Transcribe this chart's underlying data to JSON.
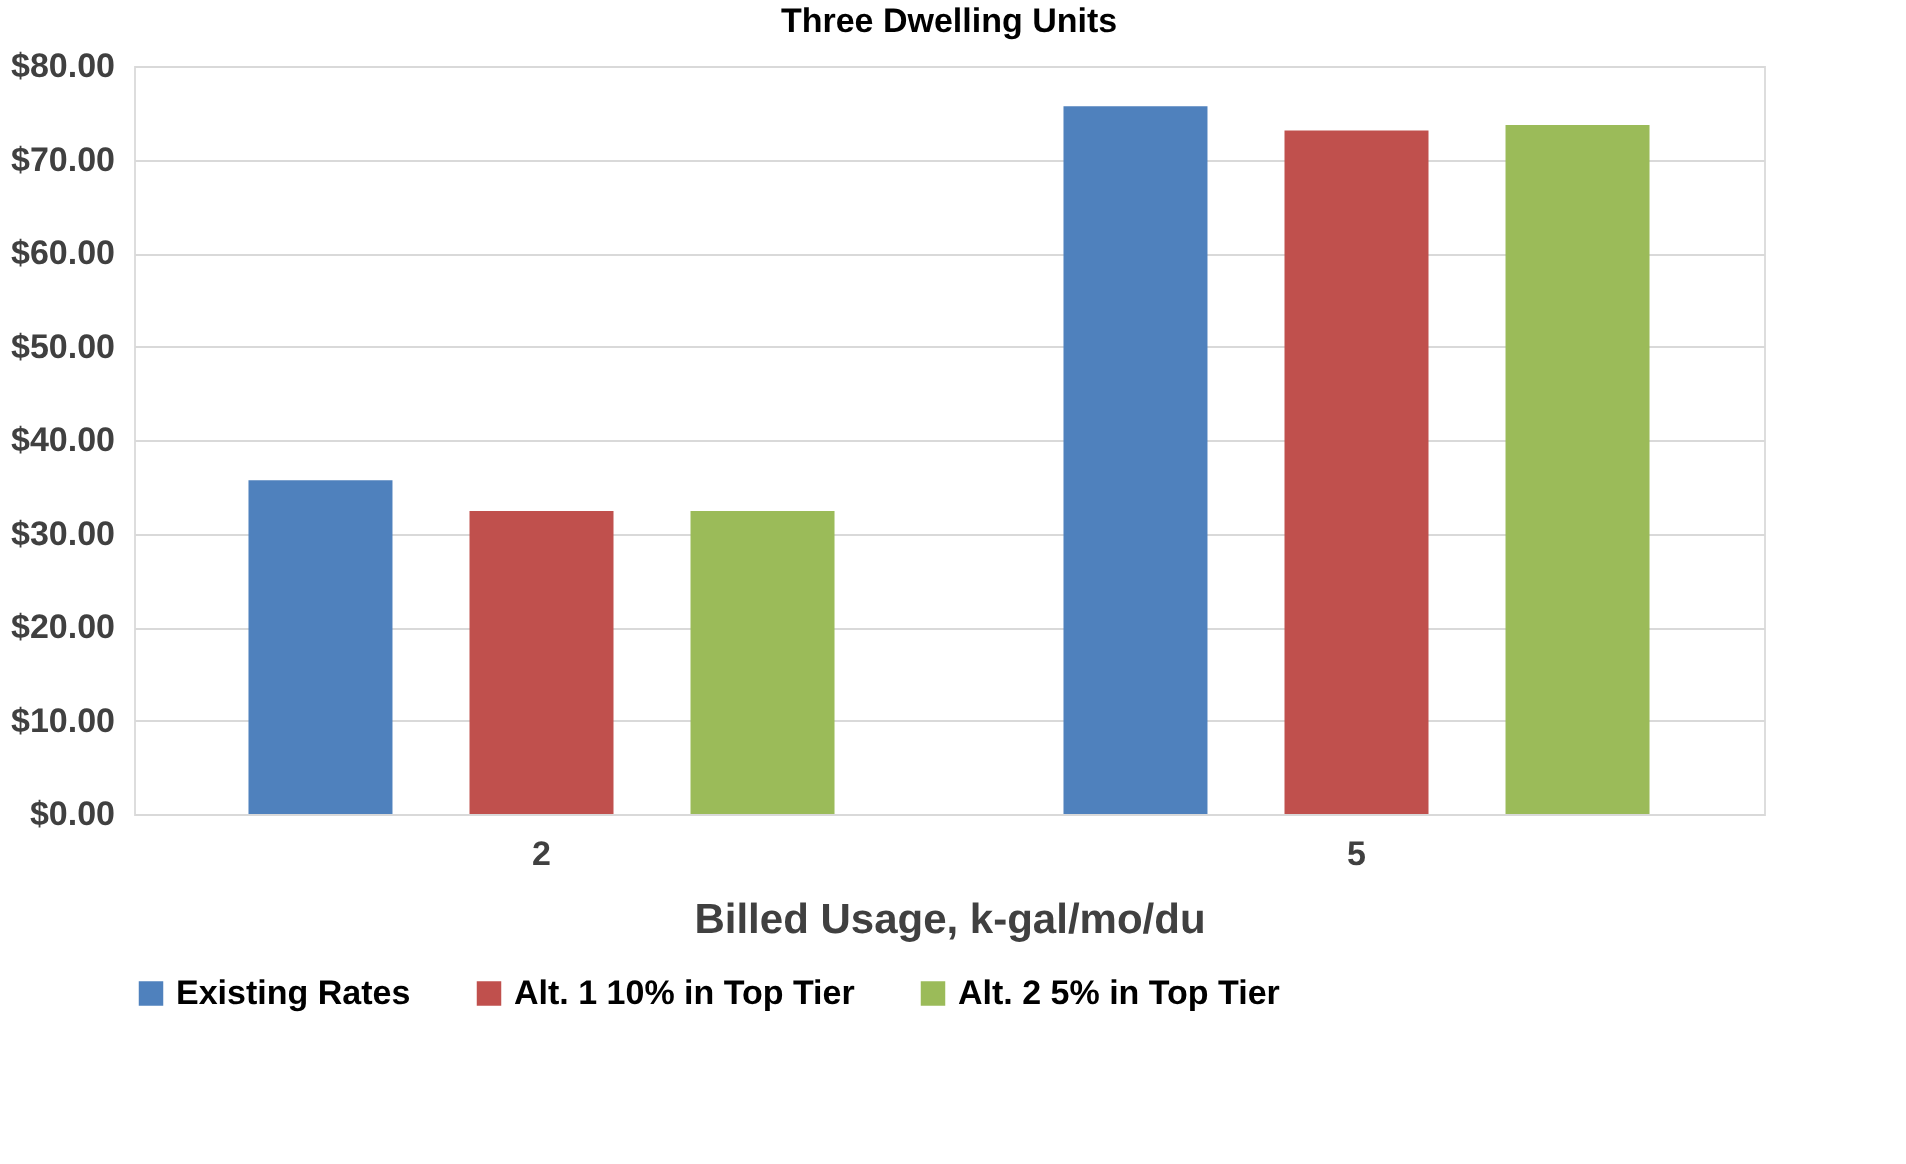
{
  "chart_data": {
    "type": "bar",
    "title": "Three Dwelling Units",
    "xlabel": "Billed Usage, k-gal/mo/du",
    "categories": [
      "2",
      "5"
    ],
    "series": [
      {
        "name": "Existing Rates",
        "color": "#4f81bd",
        "values": [
          35.7,
          75.7
        ]
      },
      {
        "name": "Alt. 1 10% in Top Tier",
        "color": "#c0504d",
        "values": [
          32.4,
          73.1
        ]
      },
      {
        "name": "Alt. 2 5% in Top Tier",
        "color": "#9bbb59",
        "values": [
          32.4,
          73.7
        ]
      }
    ],
    "ylim": [
      0,
      80
    ],
    "yticks": [
      {
        "value": 0,
        "label": "$0.00"
      },
      {
        "value": 10,
        "label": "$10.00"
      },
      {
        "value": 20,
        "label": "$20.00"
      },
      {
        "value": 30,
        "label": "$30.00"
      },
      {
        "value": 40,
        "label": "$40.00"
      },
      {
        "value": 50,
        "label": "$50.00"
      },
      {
        "value": 60,
        "label": "$60.00"
      },
      {
        "value": 70,
        "label": "$70.00"
      },
      {
        "value": 80,
        "label": "$80.00"
      }
    ],
    "grid": "y",
    "legend": "bottom"
  }
}
